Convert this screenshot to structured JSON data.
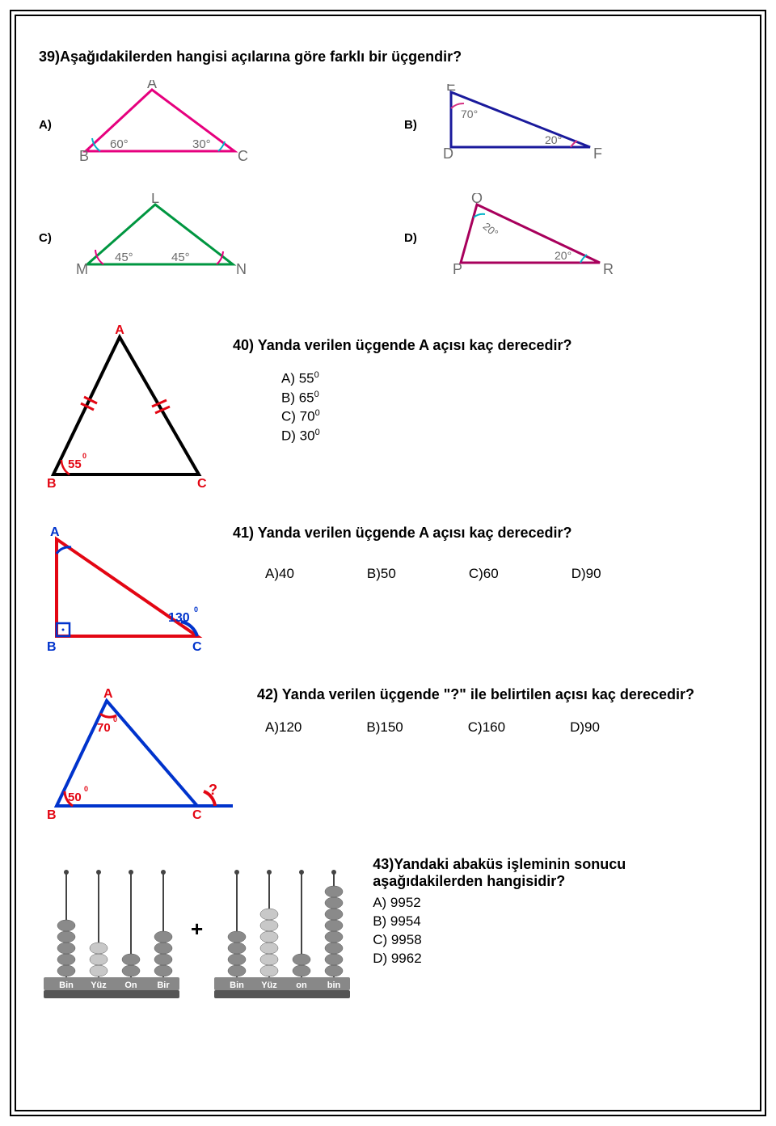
{
  "q39": {
    "title": "39)Aşağıdakilerden hangisi açılarına göre farklı bir üçgendir?",
    "options": {
      "A": {
        "label": "A)",
        "vertices": [
          "A",
          "B",
          "C"
        ],
        "angles": [
          "60°",
          "30°"
        ],
        "stroke": "#e6007e",
        "arc": "#00b3c8",
        "text": "#6b6b6b"
      },
      "B": {
        "label": "B)",
        "vertices": [
          "E",
          "D",
          "F"
        ],
        "angles": [
          "70°",
          "20°"
        ],
        "stroke": "#1a1a9c",
        "arc": "#d63384",
        "text": "#6b6b6b"
      },
      "C": {
        "label": "C)",
        "vertices": [
          "L",
          "M",
          "N"
        ],
        "angles": [
          "45°",
          "45°"
        ],
        "stroke": "#009640",
        "arc": "#e6007e",
        "text": "#6b6b6b"
      },
      "D": {
        "label": "D)",
        "vertices": [
          "O",
          "P",
          "R"
        ],
        "angles": [
          "20°",
          "20°"
        ],
        "stroke": "#a8005c",
        "arc": "#00b3c8",
        "text": "#6b6b6b"
      }
    }
  },
  "q40": {
    "title": "40) Yanda  verilen üçgende A açısı kaç derecedir?",
    "triangle": {
      "vertices": [
        "A",
        "B",
        "C"
      ],
      "angle_label": "55",
      "stroke": "#000",
      "ticks": "#e30613"
    },
    "choices": [
      "A) 55",
      "B) 65",
      "C) 70",
      "D) 30"
    ],
    "choice_sup": "0"
  },
  "q41": {
    "title": "41) Yanda  verilen üçgende A açısı kaç derecedir?",
    "triangle": {
      "vertices": [
        "A",
        "B",
        "C"
      ],
      "angle_label": "130",
      "stroke": "#e30613",
      "accent": "#0033cc"
    },
    "choices": [
      "A)40",
      "B)50",
      "C)60",
      "D)90"
    ]
  },
  "q42": {
    "title": "42) Yanda  verilen üçgende \"?\" ile belirtilen  açısı kaç derecedir?",
    "triangle": {
      "vertices": [
        "A",
        "B",
        "C"
      ],
      "angle_A": "70",
      "angle_B": "50",
      "exterior": "?",
      "stroke": "#0033cc",
      "accent": "#e30613"
    },
    "choices": [
      "A)120",
      "B)150",
      "C)160",
      "D)90"
    ]
  },
  "q43": {
    "title": "43)Yandaki abaküs işleminin sonucu aşağıdakilerden hangisidir?",
    "choices": [
      "A) 9952",
      "B) 9954",
      "C) 9958",
      "D) 9962"
    ],
    "abacus1": {
      "cols": [
        "Bin",
        "Yüz",
        "On",
        "Bir"
      ],
      "beads": [
        5,
        3,
        2,
        4
      ],
      "colors": [
        "#8a8a8a",
        "#c8c8c8",
        "#8a8a8a",
        "#8a8a8a"
      ]
    },
    "abacus2": {
      "cols": [
        "Bin",
        "Yüz",
        "on",
        "bin"
      ],
      "beads": [
        4,
        6,
        2,
        8
      ],
      "colors": [
        "#8a8a8a",
        "#c8c8c8",
        "#8a8a8a",
        "#8a8a8a"
      ]
    },
    "plus": "+"
  },
  "svg": {
    "fontsize_large": 18,
    "fontsize_mid": 15,
    "fontsize_small": 12
  }
}
